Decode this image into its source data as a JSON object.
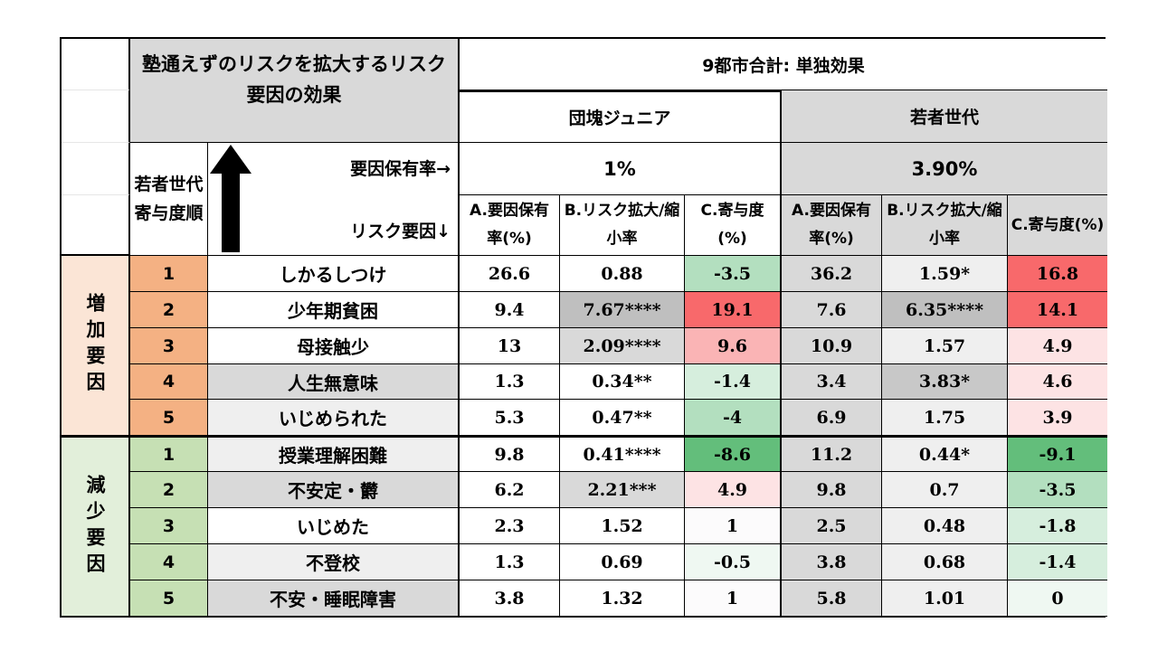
{
  "table": {
    "title": "塾通えずのリスクを拡大するリスク要因の効果",
    "overall_header": "9都市合計: 単独効果",
    "groups": [
      {
        "name": "団塊ジュニア",
        "rate": "1%"
      },
      {
        "name": "若者世代",
        "rate": "3.90%"
      }
    ],
    "order_label": "若者世代寄与度順",
    "rate_label": "要因保有率→",
    "factor_label": "リスク要因↓",
    "col_headers": {
      "a": "A.要因保有率(%)",
      "b": "B.リスク拡大/縮小率",
      "c": "C.寄与度(%)"
    },
    "sections": [
      {
        "label": "増加要因",
        "rows": [
          {
            "rank": "1",
            "factor": "しかるしつけ",
            "a1": "26.6",
            "b1": "0.88",
            "c1": "-3.5",
            "a2": "36.2",
            "b2": "1.59*",
            "c2": "16.8"
          },
          {
            "rank": "2",
            "factor": "少年期貧困",
            "a1": "9.4",
            "b1": "7.67****",
            "c1": "19.1",
            "a2": "7.6",
            "b2": "6.35****",
            "c2": "14.1"
          },
          {
            "rank": "3",
            "factor": "母接触少",
            "a1": "13",
            "b1": "2.09****",
            "c1": "9.6",
            "a2": "10.9",
            "b2": "1.57",
            "c2": "4.9"
          },
          {
            "rank": "4",
            "factor": "人生無意味",
            "a1": "1.3",
            "b1": "0.34**",
            "c1": "-1.4",
            "a2": "3.4",
            "b2": "3.83*",
            "c2": "4.6"
          },
          {
            "rank": "5",
            "factor": "いじめられた",
            "a1": "5.3",
            "b1": "0.47**",
            "c1": "-4",
            "a2": "6.9",
            "b2": "1.75",
            "c2": "3.9"
          }
        ]
      },
      {
        "label": "減少要因",
        "rows": [
          {
            "rank": "1",
            "factor": "授業理解困難",
            "a1": "9.8",
            "b1": "0.41****",
            "c1": "-8.6",
            "a2": "11.2",
            "b2": "0.44*",
            "c2": "-9.1"
          },
          {
            "rank": "2",
            "factor": "不安定・欝",
            "a1": "6.2",
            "b1": "2.21***",
            "c1": "4.9",
            "a2": "9.8",
            "b2": "0.7",
            "c2": "-3.5"
          },
          {
            "rank": "3",
            "factor": "いじめた",
            "a1": "2.3",
            "b1": "1.52",
            "c1": "1",
            "a2": "2.5",
            "b2": "0.48",
            "c2": "-1.8"
          },
          {
            "rank": "4",
            "factor": "不登校",
            "a1": "1.3",
            "b1": "0.69",
            "c1": "-0.5",
            "a2": "3.8",
            "b2": "0.68",
            "c2": "-1.4"
          },
          {
            "rank": "5",
            "factor": "不安・睡眠障害",
            "a1": "3.8",
            "b1": "1.32",
            "c1": "1",
            "a2": "5.8",
            "b2": "1.01",
            "c2": "0"
          }
        ]
      }
    ]
  }
}
